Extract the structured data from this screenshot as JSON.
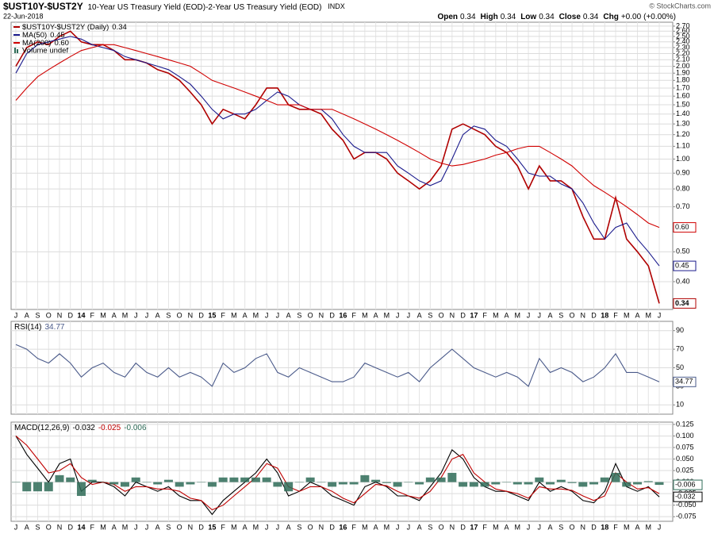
{
  "header": {
    "symbol": "$UST10Y-$UST2Y",
    "description": "10-Year US Treasury Yield (EOD)-2-Year US Treasury Yield (EOD)",
    "exchange": "INDX",
    "date": "22-Jun-2018",
    "source": "© StockCharts.com",
    "quote": [
      {
        "label": "Open",
        "value": 0.34
      },
      {
        "label": "High",
        "value": 0.34
      },
      {
        "label": "Low",
        "value": 0.34
      },
      {
        "label": "Close",
        "value": 0.34
      }
    ],
    "change": {
      "label": "Chg",
      "value": {
        "value": 0,
        "label": "+0.00"
      },
      "percent": {
        "value": 0,
        "label": "(+0.00%)"
      }
    }
  },
  "chart_data": [
    {
      "type": "line",
      "log_scale": true,
      "grid": true,
      "legend": "top-left",
      "volume_label": "Volume undef",
      "categories": [
        "J",
        "A",
        "S",
        "O",
        "N",
        "D",
        "14",
        "F",
        "M",
        "A",
        "M",
        "J",
        "J",
        "A",
        "S",
        "O",
        "N",
        "D",
        "15",
        "F",
        "M",
        "A",
        "M",
        "J",
        "J",
        "A",
        "S",
        "O",
        "N",
        "D",
        "16",
        "F",
        "M",
        "A",
        "M",
        "J",
        "J",
        "A",
        "S",
        "O",
        "N",
        "D",
        "17",
        "F",
        "M",
        "A",
        "M",
        "J",
        "J",
        "A",
        "S",
        "O",
        "N",
        "D",
        "18",
        "F",
        "M",
        "A",
        "M",
        "J"
      ],
      "ylim": [
        0.325,
        2.78
      ],
      "yticks": [
        {
          "value": 2.7,
          "label": "2.70"
        },
        {
          "value": 2.6,
          "label": "2.60"
        },
        {
          "value": 2.5,
          "label": "2.50"
        },
        {
          "value": 2.4,
          "label": "2.40"
        },
        {
          "value": 2.3,
          "label": "2.30"
        },
        {
          "value": 2.2,
          "label": "2.20"
        },
        {
          "value": 2.1,
          "label": "2.10"
        },
        {
          "value": 2,
          "label": "2.00"
        },
        {
          "value": 1.9,
          "label": "1.90"
        },
        {
          "value": 1.8,
          "label": "1.80"
        },
        {
          "value": 1.7,
          "label": "1.70"
        },
        {
          "value": 1.6,
          "label": "1.60"
        },
        {
          "value": 1.5,
          "label": "1.50"
        },
        {
          "value": 1.4,
          "label": "1.40"
        },
        {
          "value": 1.3,
          "label": "1.30"
        },
        {
          "value": 1.2,
          "label": "1.20"
        },
        {
          "value": 1.1,
          "label": "1.10"
        },
        {
          "value": 1,
          "label": "1.00"
        },
        {
          "value": 0.9,
          "label": "0.90"
        },
        {
          "value": 0.8,
          "label": "0.80"
        },
        {
          "value": 0.7,
          "label": "0.70"
        },
        {
          "value": 0.5,
          "label": "0.50"
        },
        {
          "value": 0.4,
          "label": "0.40"
        }
      ],
      "series": [
        {
          "name": "$UST10Y-$UST2Y (Daily)",
          "color": "#b00000",
          "end_label": true,
          "values": [
            2.0,
            2.3,
            2.4,
            2.35,
            2.5,
            2.6,
            2.4,
            2.35,
            2.35,
            2.25,
            2.1,
            2.1,
            2.05,
            1.95,
            1.9,
            1.8,
            1.65,
            1.5,
            1.3,
            1.45,
            1.4,
            1.35,
            1.5,
            1.7,
            1.7,
            1.5,
            1.45,
            1.45,
            1.4,
            1.25,
            1.15,
            1.0,
            1.05,
            1.05,
            1.0,
            0.9,
            0.85,
            0.8,
            0.85,
            0.95,
            1.25,
            1.3,
            1.25,
            1.2,
            1.1,
            1.05,
            0.95,
            0.8,
            0.95,
            0.85,
            0.85,
            0.8,
            0.65,
            0.55,
            0.55,
            0.75,
            0.55,
            0.5,
            0.45,
            0.34
          ]
        },
        {
          "name": "MA(50)",
          "color": "#1a1a8c",
          "end_label": true,
          "values": [
            1.9,
            2.2,
            2.35,
            2.4,
            2.45,
            2.5,
            2.45,
            2.35,
            2.3,
            2.25,
            2.15,
            2.1,
            2.05,
            2.0,
            1.95,
            1.85,
            1.75,
            1.6,
            1.45,
            1.35,
            1.4,
            1.4,
            1.45,
            1.55,
            1.65,
            1.6,
            1.5,
            1.45,
            1.45,
            1.35,
            1.2,
            1.1,
            1.05,
            1.05,
            1.05,
            0.95,
            0.9,
            0.85,
            0.82,
            0.85,
            1.0,
            1.2,
            1.28,
            1.25,
            1.15,
            1.1,
            1.0,
            0.9,
            0.88,
            0.88,
            0.83,
            0.8,
            0.72,
            0.62,
            0.55,
            0.6,
            0.62,
            0.55,
            0.5,
            0.45
          ]
        },
        {
          "name": "MA(200)",
          "color": "#d00000",
          "end_label": true,
          "values": [
            1.55,
            1.7,
            1.85,
            1.95,
            2.05,
            2.15,
            2.25,
            2.3,
            2.35,
            2.35,
            2.3,
            2.25,
            2.2,
            2.15,
            2.1,
            2.05,
            2.0,
            1.9,
            1.8,
            1.75,
            1.7,
            1.65,
            1.6,
            1.55,
            1.5,
            1.5,
            1.5,
            1.45,
            1.45,
            1.45,
            1.4,
            1.35,
            1.3,
            1.25,
            1.2,
            1.15,
            1.1,
            1.05,
            1.0,
            0.97,
            0.95,
            0.96,
            0.98,
            1.0,
            1.03,
            1.05,
            1.08,
            1.1,
            1.1,
            1.05,
            1.0,
            0.95,
            0.88,
            0.82,
            0.78,
            0.74,
            0.7,
            0.66,
            0.62,
            0.6
          ],
          "value_labels": [
            null,
            null,
            null,
            null,
            null,
            null,
            null,
            null,
            null,
            null,
            null,
            null,
            null,
            null,
            null,
            null,
            null,
            null,
            null,
            null,
            null,
            null,
            null,
            null,
            null,
            null,
            null,
            null,
            null,
            null,
            null,
            null,
            null,
            null,
            null,
            null,
            null,
            null,
            null,
            null,
            null,
            null,
            null,
            null,
            null,
            null,
            null,
            null,
            null,
            null,
            null,
            null,
            null,
            null,
            null,
            null,
            null,
            null,
            null,
            "0.60"
          ]
        }
      ]
    },
    {
      "type": "line",
      "title": "RSI(14)",
      "grid": true,
      "ylim": [
        0,
        100
      ],
      "yticks": [
        90,
        70,
        50,
        30,
        10
      ],
      "series": [
        {
          "color": "#4a5a8a",
          "end_label": true,
          "values": [
            75,
            70,
            60,
            55,
            65,
            55,
            40,
            50,
            55,
            45,
            40,
            55,
            45,
            40,
            50,
            40,
            45,
            40,
            30,
            55,
            45,
            50,
            60,
            65,
            45,
            40,
            50,
            45,
            40,
            35,
            35,
            40,
            55,
            50,
            45,
            40,
            45,
            35,
            50,
            60,
            70,
            60,
            50,
            45,
            40,
            45,
            40,
            30,
            60,
            45,
            50,
            45,
            35,
            40,
            50,
            65,
            45,
            45,
            40,
            34.77
          ]
        }
      ]
    },
    {
      "type": "line",
      "title": "MACD(12,26,9)",
      "grid": true,
      "categories": [
        "J",
        "A",
        "S",
        "O",
        "N",
        "D",
        "14",
        "F",
        "M",
        "A",
        "M",
        "J",
        "J",
        "A",
        "S",
        "O",
        "N",
        "D",
        "15",
        "F",
        "M",
        "A",
        "M",
        "J",
        "J",
        "A",
        "S",
        "O",
        "N",
        "D",
        "16",
        "F",
        "M",
        "A",
        "M",
        "J",
        "J",
        "A",
        "S",
        "O",
        "N",
        "D",
        "17",
        "F",
        "M",
        "A",
        "M",
        "J",
        "J",
        "A",
        "S",
        "O",
        "N",
        "D",
        "18",
        "F",
        "M",
        "A",
        "M",
        "J"
      ],
      "ylim": [
        -0.085,
        0.13
      ],
      "yticks": [
        0.125,
        {
          "value": 0.1,
          "label": "0.100"
        },
        0.075,
        {
          "value": 0.05,
          "label": "0.050"
        },
        0.025,
        {
          "value": 0,
          "label": "0.000"
        },
        -0.025,
        {
          "value": -0.05,
          "label": "-0.050"
        },
        -0.075
      ],
      "series": [
        {
          "color": "#000000",
          "end_label": true,
          "values": [
            0.1,
            0.06,
            0.03,
            0.0,
            0.04,
            0.05,
            -0.02,
            0.0,
            0.0,
            -0.01,
            -0.03,
            0.0,
            -0.01,
            -0.02,
            -0.01,
            -0.03,
            -0.04,
            -0.04,
            -0.07,
            -0.04,
            -0.02,
            0.0,
            0.02,
            0.05,
            0.02,
            -0.03,
            -0.02,
            0.0,
            -0.01,
            -0.03,
            -0.04,
            -0.05,
            -0.01,
            0.0,
            -0.01,
            -0.03,
            -0.03,
            -0.04,
            -0.01,
            0.02,
            0.07,
            0.05,
            0.01,
            -0.01,
            -0.02,
            -0.02,
            -0.03,
            -0.04,
            0.0,
            -0.02,
            -0.01,
            -0.02,
            -0.04,
            -0.045,
            -0.02,
            0.04,
            -0.01,
            -0.02,
            -0.01,
            -0.032
          ]
        },
        {
          "color": "#c00000",
          "end_label": false,
          "values": [
            0.1,
            0.08,
            0.05,
            0.02,
            0.025,
            0.04,
            0.01,
            -0.005,
            0.0,
            -0.005,
            -0.02,
            -0.01,
            -0.01,
            -0.015,
            -0.015,
            -0.02,
            -0.035,
            -0.04,
            -0.06,
            -0.05,
            -0.03,
            -0.01,
            0.01,
            0.04,
            0.03,
            -0.01,
            -0.02,
            -0.01,
            -0.01,
            -0.02,
            -0.035,
            -0.045,
            -0.025,
            -0.005,
            -0.008,
            -0.02,
            -0.03,
            -0.035,
            -0.02,
            0.01,
            0.05,
            0.06,
            0.02,
            0.0,
            -0.015,
            -0.02,
            -0.025,
            -0.035,
            -0.01,
            -0.015,
            -0.015,
            -0.018,
            -0.03,
            -0.04,
            -0.03,
            0.02,
            0.0,
            -0.015,
            -0.012,
            -0.025
          ]
        },
        {
          "color": "#2e6b57",
          "type": "bar",
          "end_label": true,
          "values": [
            0,
            -0.02,
            -0.02,
            -0.02,
            0.015,
            0.01,
            -0.03,
            0.005,
            0,
            -0.005,
            -0.01,
            0.01,
            0,
            -0.005,
            0.005,
            -0.01,
            -0.005,
            0,
            -0.01,
            0.01,
            0.01,
            0.01,
            0.01,
            0.01,
            -0.01,
            -0.02,
            0,
            0.01,
            0,
            -0.01,
            -0.005,
            -0.005,
            0.015,
            0.005,
            -0.002,
            -0.01,
            0,
            -0.005,
            0.01,
            0.01,
            0.02,
            -0.01,
            -0.01,
            -0.01,
            -0.005,
            0,
            -0.005,
            -0.005,
            0.01,
            -0.005,
            0.005,
            -0.002,
            -0.01,
            -0.005,
            0.01,
            0.02,
            -0.01,
            -0.005,
            0.002,
            -0.006
          ]
        }
      ]
    }
  ]
}
